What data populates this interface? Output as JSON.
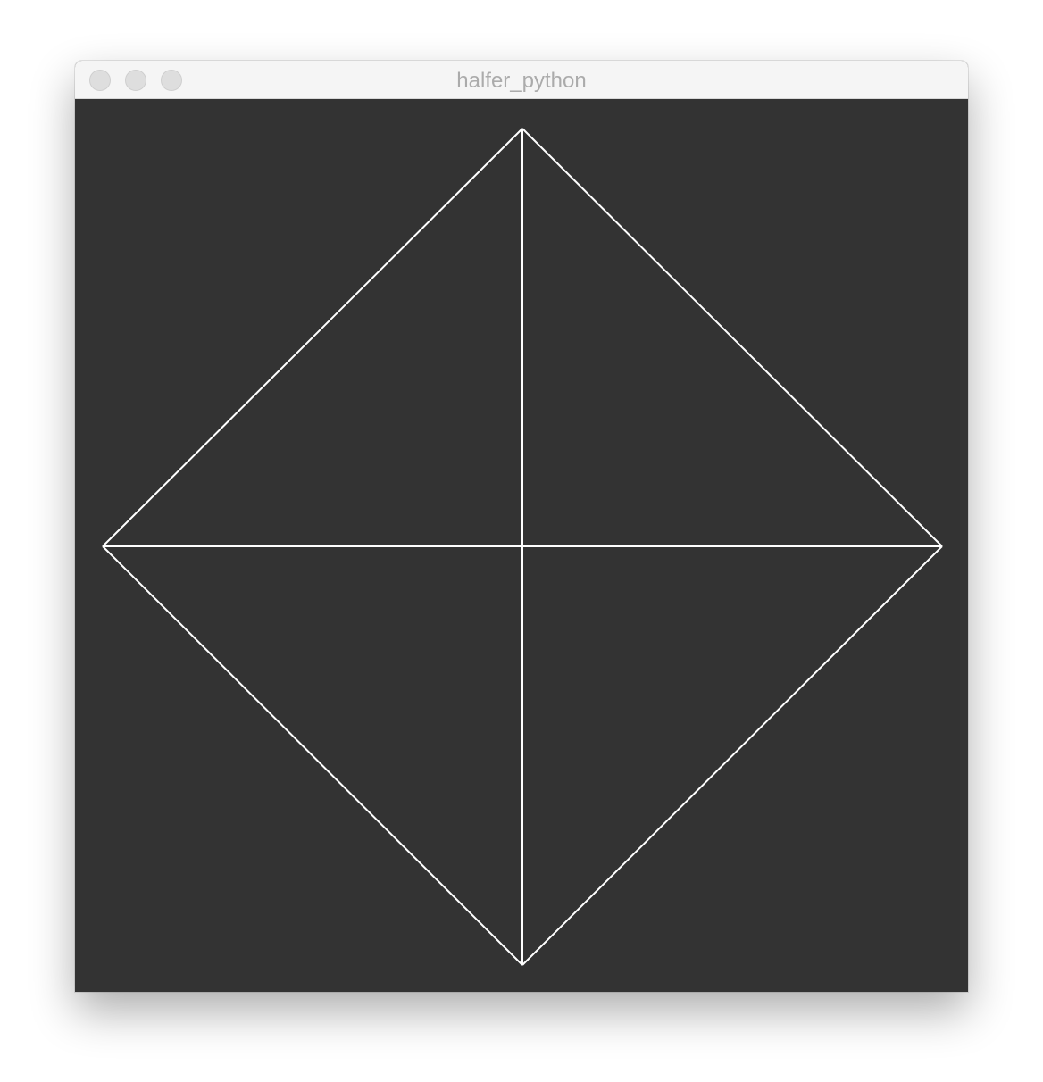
{
  "window": {
    "title": "halfer_python"
  },
  "canvas": {
    "background": "#333333",
    "stroke_color": "#ffffff",
    "shape": "square-rotated-with-diagonals"
  },
  "icons": {
    "close": "close-icon",
    "minimize": "minimize-icon",
    "zoom": "zoom-icon"
  }
}
